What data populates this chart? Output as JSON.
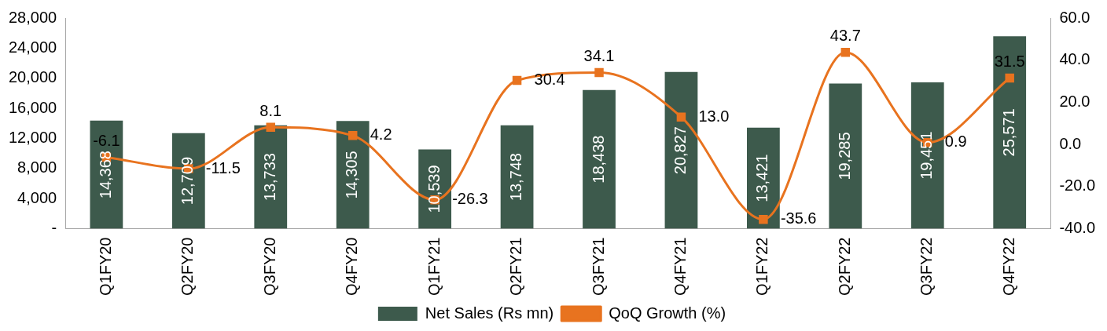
{
  "chart_data": {
    "type": "bar",
    "categories": [
      "Q1FY20",
      "Q2FY20",
      "Q3FY20",
      "Q4FY20",
      "Q1FY21",
      "Q2FY21",
      "Q3FY21",
      "Q4FY21",
      "Q1FY22",
      "Q2FY22",
      "Q3FY22",
      "Q4FY22"
    ],
    "series": [
      {
        "name": "Net Sales (Rs mn)",
        "color": "#3d5a4c",
        "values": [
          14368,
          12709,
          13733,
          14305,
          10539,
          13748,
          18438,
          20827,
          13421,
          19285,
          19451,
          25571
        ],
        "value_labels": [
          "14,368",
          "12,709",
          "13,733",
          "14,305",
          "10,539",
          "13,748",
          "18,438",
          "20,827",
          "13,421",
          "19,285",
          "19,451",
          "25,571"
        ]
      },
      {
        "name": "QoQ Growth (%)",
        "type": "line",
        "axis": "y2",
        "color": "#e8731f",
        "values": [
          -6.1,
          -11.5,
          8.1,
          4.2,
          -26.3,
          30.4,
          34.1,
          13.0,
          -35.6,
          43.7,
          0.9,
          31.5
        ],
        "value_labels": [
          "-6.1",
          "-11.5",
          "8.1",
          "4.2",
          "-26.3",
          "30.4",
          "34.1",
          "13.0",
          "-35.6",
          "43.7",
          "0.9",
          "31.5"
        ]
      }
    ],
    "ylim": [
      0,
      28000
    ],
    "yticks": [
      {
        "value": 0,
        "label": "-"
      },
      {
        "value": 4000,
        "label": "4,000"
      },
      {
        "value": 8000,
        "label": "8,000"
      },
      {
        "value": 12000,
        "label": "12,000"
      },
      {
        "value": 16000,
        "label": "16,000"
      },
      {
        "value": 20000,
        "label": "20,000"
      },
      {
        "value": 24000,
        "label": "24,000"
      },
      {
        "value": 28000,
        "label": "28,000"
      }
    ],
    "y2lim": [
      -40,
      60
    ],
    "y2ticks": [
      {
        "value": -40,
        "label": "-40.0"
      },
      {
        "value": -20,
        "label": "-20.0"
      },
      {
        "value": 0,
        "label": "0.0"
      },
      {
        "value": 20,
        "label": "20.0"
      },
      {
        "value": 40,
        "label": "40.0"
      },
      {
        "value": 60,
        "label": "60.0"
      }
    ],
    "legend": "bottom",
    "marker": "square"
  }
}
